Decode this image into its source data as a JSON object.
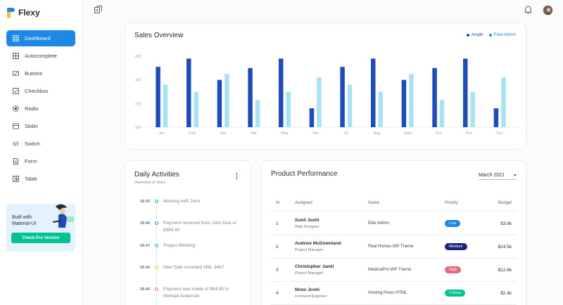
{
  "app": {
    "name": "Flexy"
  },
  "sidebar": {
    "items": [
      {
        "label": "Dashboard",
        "icon": "dashboard-icon",
        "active": true
      },
      {
        "label": "Autocomplete",
        "icon": "autocomplete-icon",
        "active": false
      },
      {
        "label": "Buttons",
        "icon": "buttons-icon",
        "active": false
      },
      {
        "label": "Checkbox",
        "icon": "checkbox-icon",
        "active": false
      },
      {
        "label": "Radio",
        "icon": "radio-icon",
        "active": false
      },
      {
        "label": "Slider",
        "icon": "slider-icon",
        "active": false
      },
      {
        "label": "Switch",
        "icon": "switch-icon",
        "active": false
      },
      {
        "label": "Form",
        "icon": "form-icon",
        "active": false
      },
      {
        "label": "Table",
        "icon": "table-icon",
        "active": false
      }
    ],
    "promo": {
      "title_line1": "Built with",
      "title_line2": "Material-UI",
      "button": "Check Pro Version"
    }
  },
  "colors": {
    "primary": "#1e88e5",
    "ample": "#1e4db7",
    "pixel": "#a7e3f4",
    "success": "#00c292",
    "error": "#e46a76",
    "navy": "#1a237e"
  },
  "sales": {
    "title": "Sales Overview",
    "legend": [
      {
        "name": "Ample",
        "color": "#1e4db7"
      },
      {
        "name": "Pixel Admin",
        "color": "#1e88e5"
      }
    ]
  },
  "chart_data": {
    "type": "bar",
    "title": "Sales Overview",
    "categories": [
      "Jan",
      "Feb",
      "Mar",
      "Apr",
      "May",
      "Jun",
      "Jul",
      "Aug",
      "Sept",
      "Oct",
      "Nov",
      "Dec"
    ],
    "yticks": [
      100,
      200,
      300,
      400
    ],
    "ylim": [
      100,
      400
    ],
    "series": [
      {
        "name": "Ample",
        "color": "#1e4db7",
        "values": [
          355,
          390,
          300,
          350,
          390,
          180,
          355,
          390,
          300,
          350,
          390,
          180
        ]
      },
      {
        "name": "Pixel Admin",
        "color": "#a7e3f4",
        "values": [
          280,
          250,
          325,
          215,
          250,
          310,
          280,
          250,
          325,
          215,
          250,
          310
        ]
      }
    ],
    "grid": false,
    "legend": "top-right"
  },
  "activities": {
    "title": "Daily Activities",
    "subtitle": "Overview of Years",
    "items": [
      {
        "time": "09.50",
        "text": "Meeting with John",
        "color": "#00c292"
      },
      {
        "time": "09.46",
        "text": "Payment received from John Doe of $385.90",
        "color": "#1e88e5"
      },
      {
        "time": "09.47",
        "text": "Project Meeting",
        "color": "#03a9f4"
      },
      {
        "time": "09.46",
        "text": "New Sale recorded #ML-3467",
        "color": "#fec90f"
      },
      {
        "time": "09.46",
        "text": "Payment was made of $64.95 to Michael Anderson",
        "color": "#e46a76"
      }
    ]
  },
  "product": {
    "title": "Product Performance",
    "month": "March 2021",
    "headers": {
      "id": "Id",
      "assigned": "Assigned",
      "name": "Name",
      "priority": "Priority",
      "budget": "Budget"
    },
    "rows": [
      {
        "id": "1",
        "name": "Sunil Joshi",
        "role": "Web Designer",
        "project": "Elite Admin",
        "priority": "Low",
        "color": "#1e88e5",
        "budget": "$3.9k"
      },
      {
        "id": "2",
        "name": "Andrew McDownland",
        "role": "Project Manager",
        "project": "Real Homes WP Theme",
        "priority": "Medium",
        "color": "#1a237e",
        "budget": "$24.5k"
      },
      {
        "id": "3",
        "name": "Christopher Jamil",
        "role": "Project Manager",
        "project": "MedicalPro WP Theme",
        "priority": "High",
        "color": "#e46a76",
        "budget": "$12.8k"
      },
      {
        "id": "4",
        "name": "Nirav Joshi",
        "role": "Frontend Engineer",
        "project": "Hosting Press HTML",
        "priority": "Critical",
        "color": "#00c292",
        "budget": "$2.4k"
      }
    ]
  }
}
